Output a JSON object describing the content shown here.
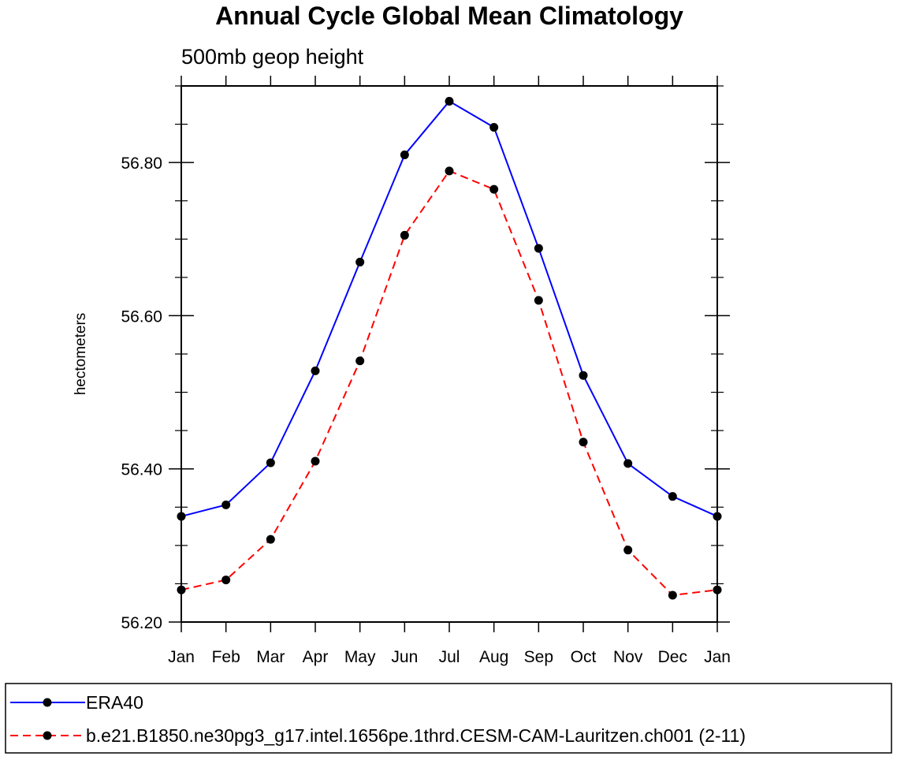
{
  "chart_data": {
    "type": "line",
    "title": "Annual Cycle Global Mean Climatology",
    "subtitle": "500mb geop height",
    "xlabel": "",
    "ylabel": "hectometers",
    "categories": [
      "Jan",
      "Feb",
      "Mar",
      "Apr",
      "May",
      "Jun",
      "Jul",
      "Aug",
      "Sep",
      "Oct",
      "Nov",
      "Dec",
      "Jan"
    ],
    "ylim": [
      56.2,
      56.9
    ],
    "yticks": [
      "56.20",
      "56.40",
      "56.60",
      "56.80"
    ],
    "ytick_values": [
      56.2,
      56.4,
      56.6,
      56.8
    ],
    "grid": false,
    "legend_position": "bottom",
    "series": [
      {
        "name": "ERA40",
        "color": "#0000ff",
        "dash": "solid",
        "marker": "circle",
        "values": [
          56.338,
          56.353,
          56.408,
          56.528,
          56.67,
          56.81,
          56.88,
          56.846,
          56.688,
          56.522,
          56.407,
          56.364,
          56.338
        ]
      },
      {
        "name": "b.e21.B1850.ne30pg3_g17.intel.1656pe.1thrd.CESM-CAM-Lauritzen.ch001 (2-11)",
        "color": "#ff0000",
        "dash": "dashed",
        "marker": "circle",
        "values": [
          56.242,
          56.255,
          56.308,
          56.41,
          56.541,
          56.705,
          56.789,
          56.765,
          56.62,
          56.435,
          56.294,
          56.235,
          56.242
        ]
      }
    ]
  }
}
